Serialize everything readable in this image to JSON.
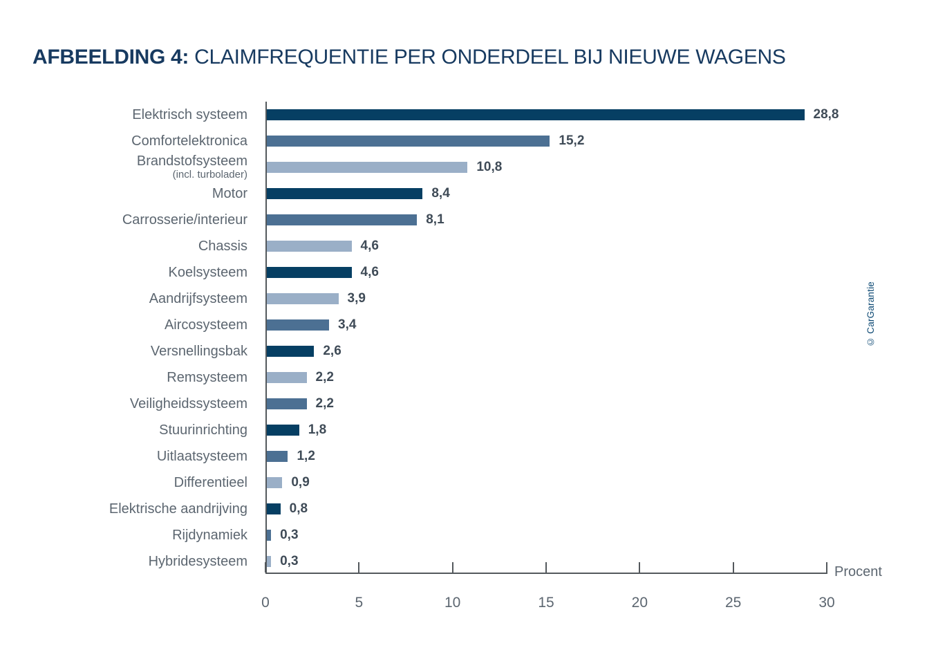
{
  "title": {
    "prefix": "AFBEELDING 4:",
    "text": " CLAIMFREQUENTIE PER ONDERDEEL BIJ NIEUWE WAGENS"
  },
  "watermark": "© CarGarantie",
  "colors": {
    "dark": "#063F63",
    "medium": "#4C7093",
    "light": "#9AAFC7",
    "title": "#173A60",
    "category_label": "#5C6670",
    "value_label": "#3F4B57",
    "axis": "#53585C"
  },
  "chart_data": {
    "type": "bar",
    "orientation": "horizontal",
    "title": "AFBEELDING 4: CLAIMFREQUENTIE PER ONDERDEEL BIJ NIEUWE WAGENS",
    "xlabel": "Procent",
    "xlim": [
      0,
      30
    ],
    "xticks": [
      0,
      5,
      10,
      15,
      20,
      25,
      30
    ],
    "grid": false,
    "legend": false,
    "rows": [
      {
        "label": "Elektrisch systeem",
        "sublabel": "",
        "value": 28.8,
        "display": "28,8",
        "color": "dark"
      },
      {
        "label": "Comfortelektronica",
        "sublabel": "",
        "value": 15.2,
        "display": "15,2",
        "color": "medium"
      },
      {
        "label": "Brandstofsysteem",
        "sublabel": "(incl. turbolader)",
        "value": 10.8,
        "display": "10,8",
        "color": "light"
      },
      {
        "label": "Motor",
        "sublabel": "",
        "value": 8.4,
        "display": "8,4",
        "color": "dark"
      },
      {
        "label": "Carrosserie/interieur",
        "sublabel": "",
        "value": 8.1,
        "display": "8,1",
        "color": "medium"
      },
      {
        "label": "Chassis",
        "sublabel": "",
        "value": 4.6,
        "display": "4,6",
        "color": "light"
      },
      {
        "label": "Koelsysteem",
        "sublabel": "",
        "value": 4.6,
        "display": "4,6",
        "color": "dark"
      },
      {
        "label": "Aandrijfsysteem",
        "sublabel": "",
        "value": 3.9,
        "display": "3,9",
        "color": "light"
      },
      {
        "label": "Aircosysteem",
        "sublabel": "",
        "value": 3.4,
        "display": "3,4",
        "color": "medium"
      },
      {
        "label": "Versnellingsbak",
        "sublabel": "",
        "value": 2.6,
        "display": "2,6",
        "color": "dark"
      },
      {
        "label": "Remsysteem",
        "sublabel": "",
        "value": 2.2,
        "display": "2,2",
        "color": "light"
      },
      {
        "label": "Veiligheidssysteem",
        "sublabel": "",
        "value": 2.2,
        "display": "2,2",
        "color": "medium"
      },
      {
        "label": "Stuurinrichting",
        "sublabel": "",
        "value": 1.8,
        "display": "1,8",
        "color": "dark"
      },
      {
        "label": "Uitlaatsysteem",
        "sublabel": "",
        "value": 1.2,
        "display": "1,2",
        "color": "medium"
      },
      {
        "label": "Differentieel",
        "sublabel": "",
        "value": 0.9,
        "display": "0,9",
        "color": "light"
      },
      {
        "label": "Elektrische aandrijving",
        "sublabel": "",
        "value": 0.8,
        "display": "0,8",
        "color": "dark"
      },
      {
        "label": "Rijdynamiek",
        "sublabel": "",
        "value": 0.3,
        "display": "0,3",
        "color": "medium"
      },
      {
        "label": "Hybridesysteem",
        "sublabel": "",
        "value": 0.3,
        "display": "0,3",
        "color": "light"
      }
    ]
  }
}
